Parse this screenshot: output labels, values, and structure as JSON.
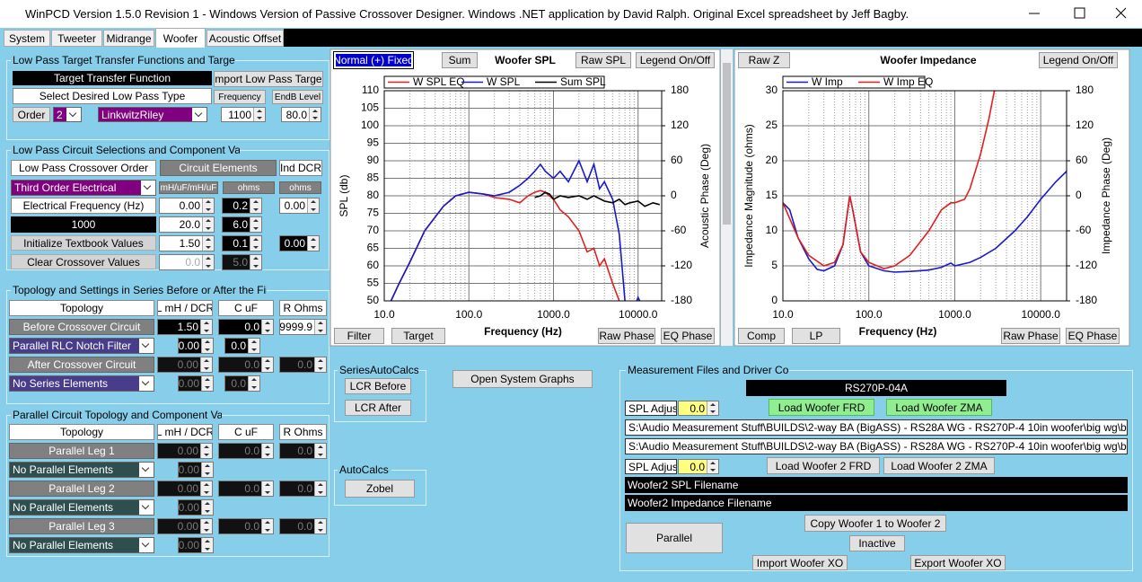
{
  "window": {
    "title": "WinPCD Version 1.5.0 Revision 1 - Windows Version of Passive Crossover Designer. Windows .NET application by David Ralph. Original Excel spreadsheet by Jeff Bagby."
  },
  "tabs": [
    "System",
    "Tweeter",
    "Midrange",
    "Woofer",
    "Acoustic Offset"
  ],
  "low_pass_target": {
    "title": "Low Pass Target Transfer Functions and Target",
    "transfer_function": "Target Transfer Function",
    "import_button": "Import Low Pass Target",
    "select_type": "Select Desired Low Pass Type",
    "frequency_label": "Frequency",
    "endb_label": "EndB Level",
    "order_button": "Order",
    "order_value": "2",
    "type_value": "LinkwitzRiley",
    "frequency_value": "1100",
    "endb_value": "80.0"
  },
  "low_pass_circuit": {
    "title": "Low Pass Circuit Selections and Component Values",
    "crossover_order_label": "Low Pass Crossover Order",
    "circuit_elements": "Circuit Elements",
    "ind_dcr": "Ind DCR",
    "crossover_type": "Third Order Electrical",
    "units": [
      "mH/uF/mH/uF",
      "ohms",
      "ohms"
    ],
    "rows": [
      [
        "Electrical Frequency (Hz)",
        "0.00",
        "0.2",
        "0.00"
      ],
      [
        "1000",
        "20.0",
        "6.0"
      ],
      [
        "Initialize Textbook Values",
        "1.50",
        "0.1",
        "0.00"
      ],
      [
        "Clear Crossover Values",
        "0.0",
        "5.0"
      ]
    ]
  },
  "series_topology": {
    "title": "Topology and Settings in Series Before or After the Filter",
    "headers": [
      "Topology",
      "L mH / DCR",
      "C uF",
      "R Ohms"
    ],
    "rows": [
      [
        "Before Crossover Circuit",
        "1.50",
        "0.0",
        "9999.9"
      ],
      [
        "Parallel RLC Notch Filter",
        "0.00",
        "0.0"
      ],
      [
        "After Crossover Circuit",
        "0.00",
        "0.0",
        "0.0"
      ],
      [
        "No Series Elements",
        "0.00",
        "0.0"
      ]
    ]
  },
  "parallel_topology": {
    "title": "Parallel Circuit Topology and Component Values",
    "headers": [
      "Topology",
      "L mH / DCR",
      "C uF",
      "R Ohms"
    ],
    "rows": [
      [
        "Parallel Leg 1",
        "0.00",
        "0.0",
        "0.0"
      ],
      [
        "No Parallel Elements",
        "0.00"
      ],
      [
        "Parallel Leg 2",
        "0.00",
        "0.0",
        "0.0"
      ],
      [
        "No Parallel Elements",
        "0.00"
      ],
      [
        "Parallel Leg 3",
        "0.00",
        "0.0",
        "0.0"
      ],
      [
        "No Parallel Elements",
        "0.00"
      ]
    ]
  },
  "series_autocalcs": {
    "title": "SeriesAutoCalcs",
    "buttons": [
      "LCR Before",
      "LCR After"
    ]
  },
  "open_system_graphs": "Open System Graphs",
  "autocalcs": {
    "title": "AutoCalcs",
    "button": "Zobel"
  },
  "measurement": {
    "title": "Measurement Files and Driver Control",
    "driver_name": "RS270P-04A",
    "spl_adjust_label": "SPL Adjust",
    "spl_adjust": "0.0",
    "load_frd": "Load Woofer FRD",
    "load_zma": "Load Woofer ZMA",
    "frd_path": "S:\\Audio Measurement Stuff\\BUILDS\\2-way BA (BigASS) - RS28A WG - RS270P-4 10in woofer\\big wg\\big wg\\prepa",
    "zma_path": "S:\\Audio Measurement Stuff\\BUILDS\\2-way BA (BigASS) - RS28A WG - RS270P-4 10in woofer\\big wg\\big wg\\prepa",
    "spl_adjust2_label": "SPL Adjust",
    "spl_adjust2": "0.0",
    "load_frd2": "Load Woofer 2 FRD",
    "load_zma2": "Load Woofer 2  ZMA",
    "frd2_path": "Woofer2 SPL Filename",
    "zma2_path": "Woofer2 Impedance Filename",
    "copy": "Copy Woofer 1 to  Woofer 2",
    "parallel": "Parallel",
    "inactive": "Inactive",
    "import_xo": "Import Woofer XO",
    "export_xo": "Export Woofer XO"
  },
  "spl_buttons": [
    "Normal (+) Fixed",
    "Sum",
    "Raw SPL",
    "Legend On/Off",
    "Filter",
    "Target",
    "Raw Phase",
    "EQ Phase"
  ],
  "impedance_buttons": [
    "Raw Z",
    "Legend On/Off",
    "Comp",
    "LP",
    "Raw Phase",
    "EQ Phase"
  ],
  "spl_chart": {
    "type": "line",
    "title": "Woofer SPL",
    "x_label": "Frequency (Hz)",
    "y_label": "SPL (db)",
    "y2_label": "Acoustic Phase (Deg)",
    "log_x": true,
    "grid": true,
    "xlim": [
      10,
      19000
    ],
    "xticks": [
      {
        "value": 10,
        "label": "10.0"
      },
      {
        "value": 100,
        "label": "100.0"
      },
      {
        "value": 1000,
        "label": "1000.0"
      },
      {
        "value": 10000,
        "label": "10000.0"
      }
    ],
    "ylim": [
      50,
      110
    ],
    "yticks": [
      50,
      55,
      60,
      65,
      70,
      75,
      80,
      85,
      90,
      95,
      100,
      105,
      110
    ],
    "y2lim": [
      -180,
      180
    ],
    "y2ticks": [
      -180,
      -120,
      -60,
      0,
      60,
      120,
      180
    ],
    "series": [
      {
        "name": "W SPL EQ",
        "color": "#e02020",
        "x": [
          10,
          12,
          15,
          20,
          30,
          50,
          70,
          100,
          150,
          200,
          300,
          400,
          500,
          600,
          700,
          800,
          1000,
          1200,
          1500,
          2000,
          2500,
          3000,
          3500,
          4000,
          5000,
          6000,
          7000
        ],
        "values": [
          47,
          50,
          55,
          61,
          70,
          77,
          80,
          81,
          80.5,
          79.5,
          79,
          78,
          80,
          81,
          81.5,
          81,
          79,
          76,
          74,
          70,
          64,
          65,
          60,
          62,
          55,
          50,
          47
        ]
      },
      {
        "name": "W SPL",
        "color": "#1a1ac8",
        "x": [
          10,
          12,
          15,
          20,
          30,
          50,
          70,
          100,
          150,
          200,
          300,
          400,
          500,
          600,
          700,
          800,
          1000,
          1200,
          1500,
          2000,
          2500,
          3000,
          3500,
          4000,
          5000,
          6000,
          7000,
          8000,
          9000,
          10000,
          12000
        ],
        "values": [
          47,
          50,
          55,
          61,
          70,
          77,
          80,
          81,
          80.5,
          80,
          81,
          83,
          85,
          87,
          89,
          87,
          85,
          87,
          84,
          90,
          84,
          89,
          82,
          84,
          79,
          69,
          50,
          45,
          48,
          51,
          47
        ]
      },
      {
        "name": "Sum SPL",
        "color": "#000000",
        "x": [
          600,
          700,
          800,
          900,
          1000,
          1200,
          1500,
          2000,
          2500,
          3000,
          4000,
          5000,
          6000,
          7000,
          8000,
          10000,
          12000,
          15000,
          18000
        ],
        "values": [
          79.5,
          80,
          81,
          80.5,
          79,
          80,
          79.5,
          80,
          79,
          80,
          78.5,
          78,
          79,
          77.5,
          78,
          78.5,
          77,
          78,
          77.5
        ]
      }
    ]
  },
  "impedance_chart": {
    "type": "line",
    "title": "Woofer Impedance",
    "x_label": "Frequency (Hz)",
    "y_label": "Impedance Magnitude (ohms)",
    "y2_label": "Impedance Phase (Deg)",
    "log_x": true,
    "grid": true,
    "xlim": [
      10,
      20000
    ],
    "xticks": [
      {
        "value": 10,
        "label": "10.0"
      },
      {
        "value": 100,
        "label": "100.0"
      },
      {
        "value": 1000,
        "label": "1000.0"
      },
      {
        "value": 10000,
        "label": "10000.0"
      }
    ],
    "ylim": [
      0,
      30
    ],
    "yticks": [
      0,
      5,
      10,
      15,
      20,
      25,
      30
    ],
    "y2lim": [
      -180,
      180
    ],
    "y2ticks": [
      -180,
      -120,
      -60,
      0,
      60,
      120,
      180
    ],
    "series": [
      {
        "name": "W Imp",
        "color": "#1a1ac8",
        "x": [
          10,
          12,
          15,
          20,
          25,
          30,
          40,
          50,
          60,
          65,
          80,
          100,
          150,
          200,
          300,
          500,
          700,
          900,
          1000,
          1500,
          2000,
          3000,
          5000,
          7000,
          10000,
          15000,
          20000
        ],
        "values": [
          14,
          13,
          9,
          6,
          4.5,
          4.3,
          5,
          8,
          15,
          13,
          7,
          5,
          4.3,
          4.1,
          4.2,
          4.4,
          4.8,
          5.4,
          5,
          5.5,
          6.2,
          7.5,
          10,
          12,
          14.5,
          17,
          18.5
        ]
      },
      {
        "name": "W Imp EQ",
        "color": "#e02020",
        "x": [
          10,
          15,
          20,
          30,
          40,
          50,
          60,
          65,
          80,
          100,
          150,
          200,
          300,
          500,
          700,
          900,
          1000,
          1300,
          1500,
          2000,
          2500,
          3000
        ],
        "values": [
          14,
          9,
          6.5,
          5,
          5.5,
          8,
          15,
          13,
          7,
          5.5,
          4.6,
          5,
          6.5,
          10,
          13,
          14,
          14,
          14.5,
          16,
          21,
          26,
          31
        ]
      }
    ]
  }
}
